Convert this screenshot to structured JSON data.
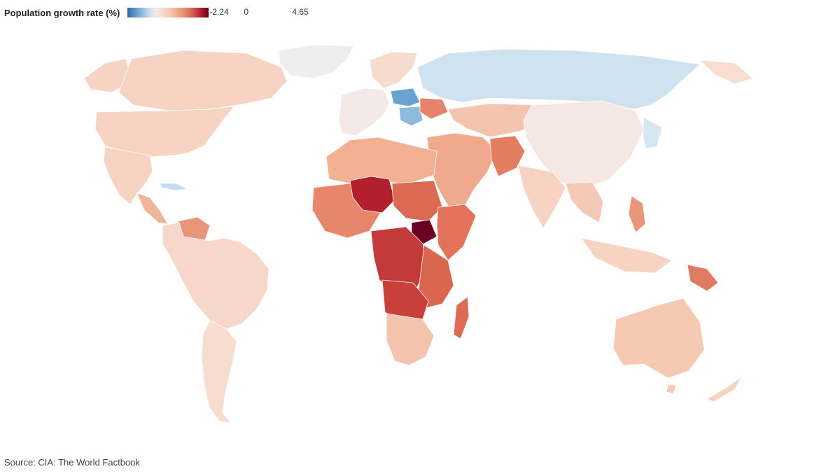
{
  "legend": {
    "title": "Population growth rate (%)",
    "min_label": "-2.24",
    "mid_label": "0",
    "max_label": "4.65",
    "min_value": -2.24,
    "mid_value": 0,
    "max_value": 4.65
  },
  "source": "Source: CIA: The World Factbook",
  "colors": {
    "no_data": "#eeeeee",
    "scale": [
      "#2b65a8",
      "#6aa2cf",
      "#c6dcee",
      "#f7eae4",
      "#f6c7b0",
      "#e8957a",
      "#d65f4f",
      "#b2202e",
      "#6b0022"
    ]
  },
  "map_data": {
    "type": "choropleth",
    "color_scale": "diverging blue-white-red",
    "regions": [
      {
        "name": "South Sudan",
        "growth_rate": 4.65
      },
      {
        "name": "Niger",
        "growth_rate": 3.7
      },
      {
        "name": "Russia",
        "growth_rate": -0.2
      },
      {
        "name": "Ukraine",
        "growth_rate": 2.4
      }
    ]
  }
}
